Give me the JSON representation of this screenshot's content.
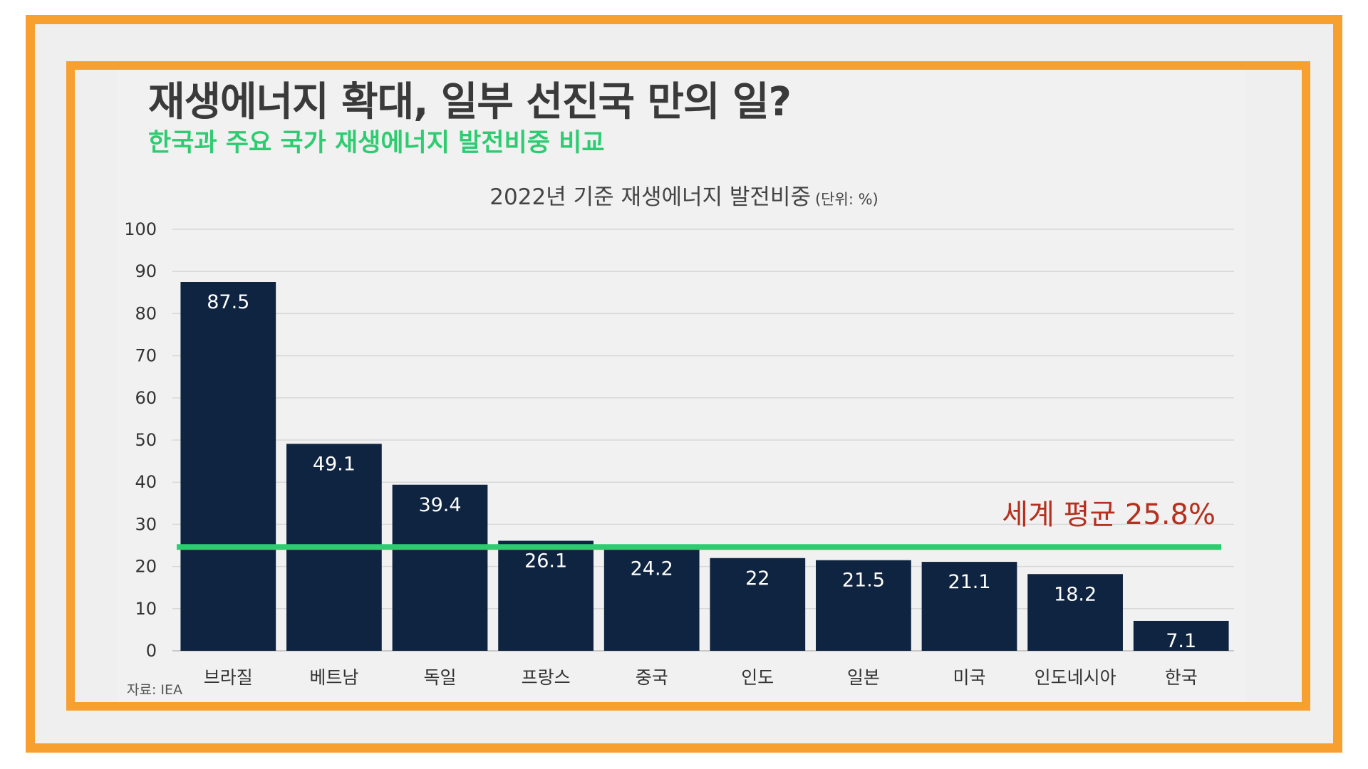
{
  "title": "재생에너지 확대, 일부 선진국 만의 일?",
  "subtitle": "한국과 주요 국가 재생에너지 발전비중 비교",
  "source": "자료: IEA",
  "colors": {
    "frame": "#f7a030",
    "bar": "#0f2440",
    "average_line": "#2ecc71",
    "average_label": "#b5301e",
    "subtitle": "#2ecc71"
  },
  "chart_data": {
    "type": "bar",
    "title": "2022년 기준 재생에너지 발전비중",
    "unit_label": "(단위: %)",
    "categories": [
      "브라질",
      "베트남",
      "독일",
      "프랑스",
      "중국",
      "인도",
      "일본",
      "미국",
      "인도네시아",
      "한국"
    ],
    "values": [
      87.5,
      49.1,
      39.4,
      26.1,
      24.2,
      22,
      21.5,
      21.1,
      18.2,
      7.1
    ],
    "value_labels": [
      "87.5",
      "49.1",
      "39.4",
      "26.1",
      "24.2",
      "22",
      "21.5",
      "21.1",
      "18.2",
      "7.1"
    ],
    "ylim": [
      0,
      100
    ],
    "yticks": [
      "0",
      "10",
      "20",
      "30",
      "40",
      "50",
      "60",
      "70",
      "80",
      "90",
      "100"
    ],
    "grid": true,
    "reference_line": {
      "label": "세계 평균 25.8%",
      "value": 25.8
    }
  }
}
